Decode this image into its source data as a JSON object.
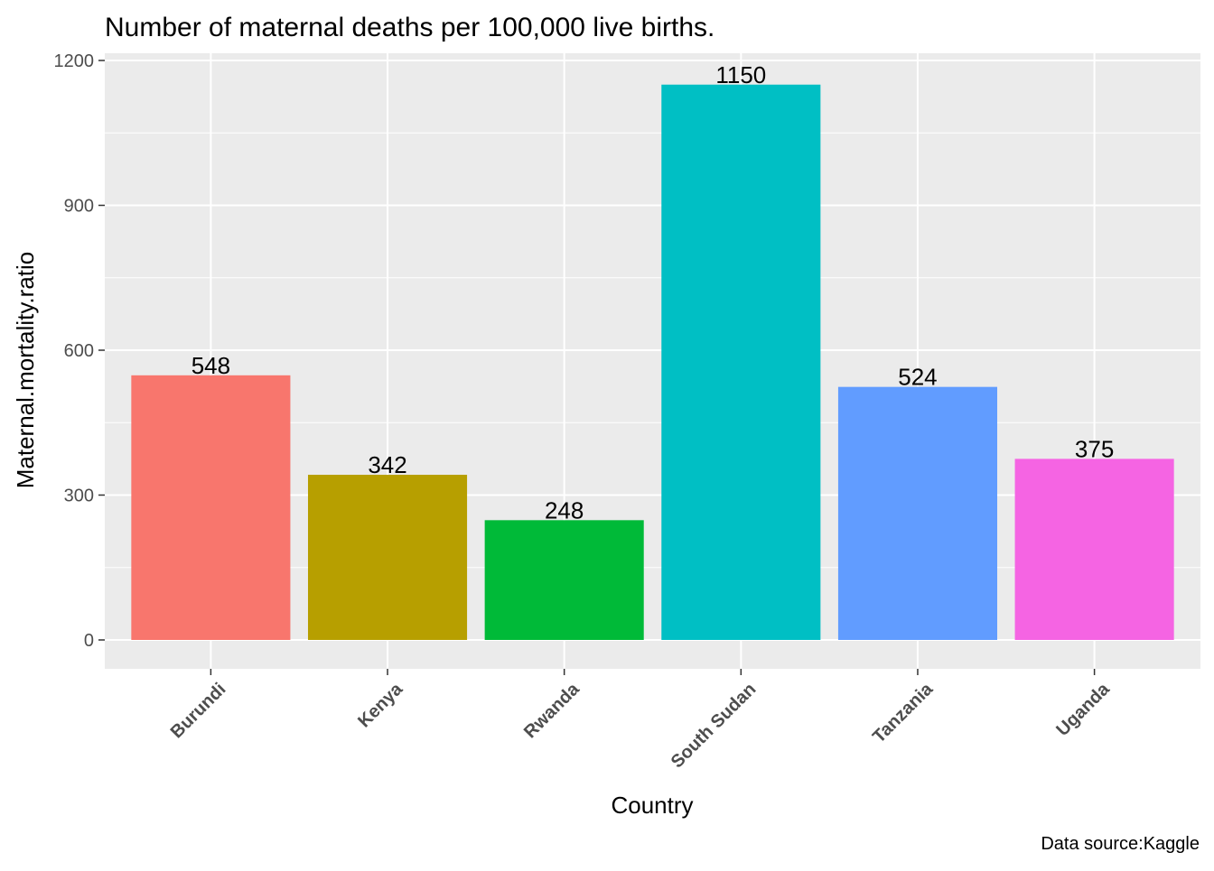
{
  "chart_data": {
    "type": "bar",
    "title": "Number of maternal deaths per 100,000 live births.",
    "xlabel": "Country",
    "ylabel": "Maternal.mortality.ratio",
    "caption": "Data source:Kaggle",
    "categories": [
      "Burundi",
      "Kenya",
      "Rwanda",
      "South Sudan",
      "Tanzania",
      "Uganda"
    ],
    "values": [
      548,
      342,
      248,
      1150,
      524,
      375
    ],
    "colors": [
      "#F8766D",
      "#B79F00",
      "#00BA38",
      "#00BFC4",
      "#619CFF",
      "#F564E3"
    ],
    "ylim": [
      0,
      1200
    ],
    "yticks": [
      0,
      300,
      600,
      900,
      1200
    ],
    "grid": true,
    "legend": "none"
  }
}
